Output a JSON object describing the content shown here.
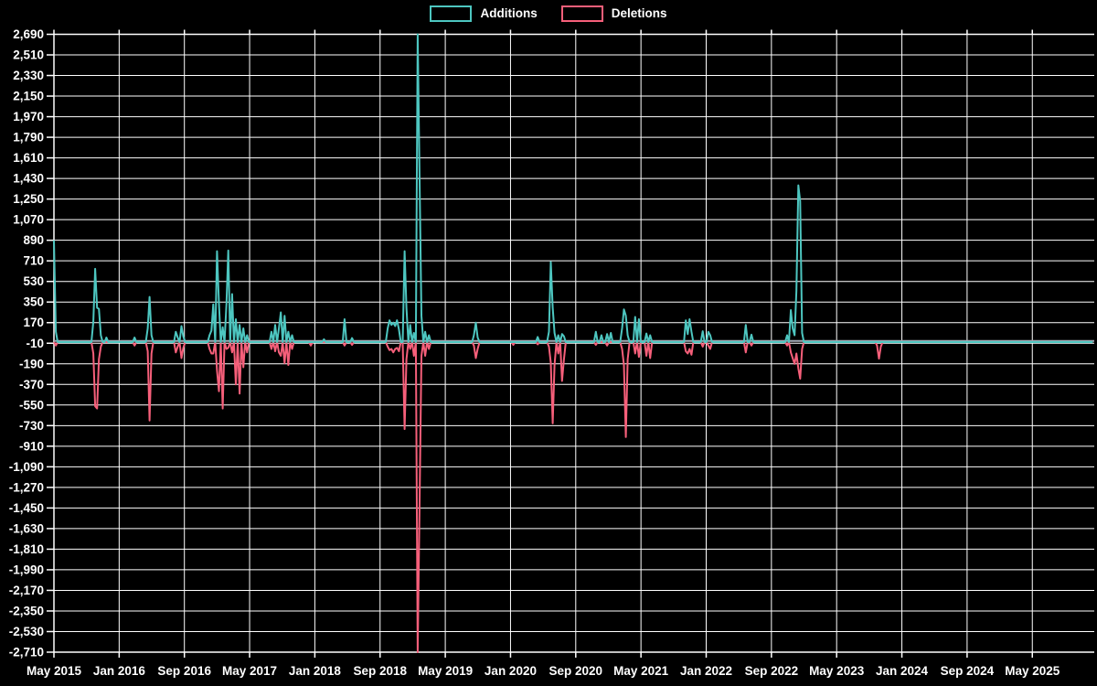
{
  "chart_data": {
    "type": "line",
    "title": "",
    "background": "#000000",
    "grid": true,
    "grid_color": "#ffffff",
    "zero_line_color": "#9FA8B2",
    "legend_position": "top-center",
    "legend": [
      {
        "label": "Additions",
        "color": "#4DC6C0"
      },
      {
        "label": "Deletions",
        "color": "#F65F7A"
      }
    ],
    "y_axis": {
      "max": 2690,
      "min": -2710,
      "tick_step": 180,
      "tick_labels": [
        "2,690",
        "2,510",
        "2,330",
        "2,150",
        "1,970",
        "1,790",
        "1,610",
        "1,430",
        "1,250",
        "1,070",
        "890",
        "710",
        "530",
        "350",
        "170",
        "-10",
        "-190",
        "-370",
        "-550",
        "-730",
        "-910",
        "-1,090",
        "-1,270",
        "-1,450",
        "-1,630",
        "-1,810",
        "-1,990",
        "-2,170",
        "-2,350",
        "-2,530",
        "-2,710"
      ]
    },
    "x_axis": {
      "start": "May 2015",
      "label_interval_months": 8,
      "tick_labels": [
        "May 2015",
        "Jan 2016",
        "Sep 2016",
        "May 2017",
        "Jan 2018",
        "Sep 2018",
        "May 2019",
        "Jan 2020",
        "Sep 2020",
        "May 2021",
        "Jan 2022",
        "Sep 2022",
        "May 2023",
        "Jan 2024",
        "Sep 2024",
        "May 2025"
      ]
    },
    "sampling": "weekly",
    "weeks_total": 554,
    "baseline_value": 0,
    "spike_format": [
      "week_index_from_2015-05",
      "additions",
      "deletions"
    ],
    "spikes": [
      [
        0,
        890,
        0
      ],
      [
        1,
        90,
        -30
      ],
      [
        21,
        180,
        -100
      ],
      [
        22,
        640,
        -560
      ],
      [
        23,
        300,
        -580
      ],
      [
        24,
        290,
        -150
      ],
      [
        25,
        60,
        -40
      ],
      [
        28,
        40,
        0
      ],
      [
        43,
        40,
        -30
      ],
      [
        50,
        120,
        -80
      ],
      [
        51,
        395,
        -685
      ],
      [
        52,
        60,
        -100
      ],
      [
        65,
        90,
        -90
      ],
      [
        66,
        40,
        -40
      ],
      [
        68,
        140,
        -140
      ],
      [
        69,
        50,
        -50
      ],
      [
        83,
        60,
        -60
      ],
      [
        84,
        100,
        -100
      ],
      [
        85,
        330,
        -100
      ],
      [
        87,
        795,
        -250
      ],
      [
        88,
        340,
        -430
      ],
      [
        90,
        130,
        -580
      ],
      [
        92,
        330,
        -60
      ],
      [
        93,
        800,
        -50
      ],
      [
        95,
        420,
        -90
      ],
      [
        97,
        200,
        -370
      ],
      [
        99,
        150,
        -450
      ],
      [
        101,
        120,
        -220
      ],
      [
        103,
        60,
        -90
      ],
      [
        116,
        90,
        -60
      ],
      [
        118,
        150,
        -80
      ],
      [
        120,
        120,
        -90
      ],
      [
        121,
        260,
        -120
      ],
      [
        123,
        230,
        -185
      ],
      [
        125,
        90,
        -200
      ],
      [
        127,
        60,
        -60
      ],
      [
        137,
        0,
        -30
      ],
      [
        144,
        25,
        0
      ],
      [
        155,
        200,
        -30
      ],
      [
        159,
        35,
        -25
      ],
      [
        178,
        120,
        -40
      ],
      [
        179,
        190,
        -70
      ],
      [
        180,
        150,
        -60
      ],
      [
        181,
        170,
        -90
      ],
      [
        182,
        140,
        -60
      ],
      [
        183,
        190,
        -50
      ],
      [
        184,
        110,
        -80
      ],
      [
        187,
        795,
        -760
      ],
      [
        188,
        300,
        -150
      ],
      [
        190,
        150,
        -60
      ],
      [
        192,
        80,
        -120
      ],
      [
        194,
        2690,
        -2710
      ],
      [
        195,
        1410,
        -1390
      ],
      [
        196,
        230,
        -120
      ],
      [
        198,
        90,
        -120
      ],
      [
        200,
        60,
        -60
      ],
      [
        224,
        60,
        -30
      ],
      [
        225,
        170,
        -140
      ],
      [
        226,
        40,
        -60
      ],
      [
        245,
        0,
        -25
      ],
      [
        258,
        45,
        -20
      ],
      [
        264,
        90,
        -40
      ],
      [
        265,
        700,
        -180
      ],
      [
        266,
        300,
        -710
      ],
      [
        267,
        80,
        -200
      ],
      [
        269,
        60,
        -100
      ],
      [
        271,
        70,
        -340
      ],
      [
        272,
        50,
        -150
      ],
      [
        289,
        90,
        -25
      ],
      [
        292,
        60,
        0
      ],
      [
        295,
        70,
        -30
      ],
      [
        297,
        80,
        0
      ],
      [
        303,
        120,
        -60
      ],
      [
        304,
        285,
        -200
      ],
      [
        305,
        230,
        -830
      ],
      [
        306,
        60,
        -150
      ],
      [
        310,
        220,
        -100
      ],
      [
        312,
        200,
        -130
      ],
      [
        316,
        75,
        -120
      ],
      [
        318,
        60,
        -140
      ],
      [
        337,
        190,
        -80
      ],
      [
        338,
        70,
        -100
      ],
      [
        339,
        200,
        -60
      ],
      [
        340,
        90,
        -110
      ],
      [
        346,
        95,
        -40
      ],
      [
        349,
        90,
        -30
      ],
      [
        350,
        60,
        -60
      ],
      [
        369,
        150,
        -90
      ],
      [
        372,
        65,
        -30
      ],
      [
        391,
        60,
        -30
      ],
      [
        393,
        280,
        -90
      ],
      [
        394,
        120,
        -140
      ],
      [
        395,
        60,
        -190
      ],
      [
        396,
        450,
        -100
      ],
      [
        397,
        1370,
        -230
      ],
      [
        398,
        1230,
        -320
      ],
      [
        399,
        80,
        -60
      ],
      [
        439,
        0,
        -30
      ],
      [
        440,
        0,
        -145
      ],
      [
        441,
        0,
        -40
      ]
    ]
  },
  "legend": {
    "additions": "Additions",
    "deletions": "Deletions"
  }
}
